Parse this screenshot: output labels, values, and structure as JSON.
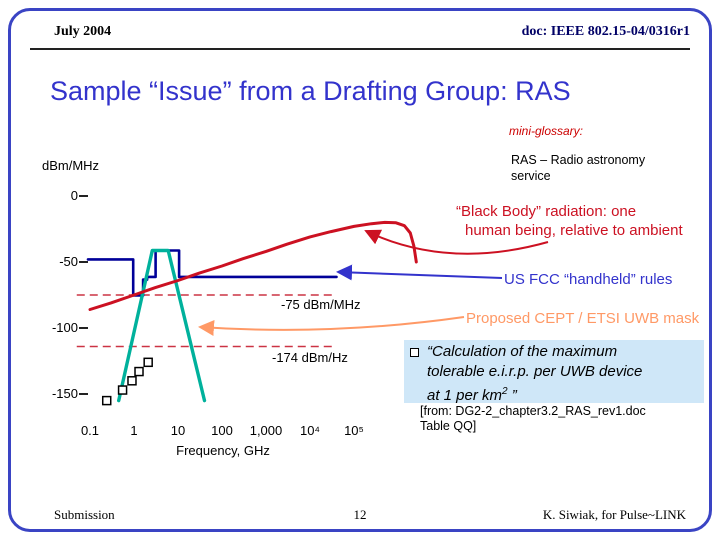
{
  "slide": {
    "header_left": "July 2004",
    "header_right": "doc: IEEE 802.15-04/0316r1",
    "title": "Sample “Issue” from a Drafting Group: RAS",
    "footer_left": "Submission",
    "footer_center": "12",
    "footer_right": "K. Siwiak, for Pulse~LINK"
  },
  "glossary": {
    "heading": "mini-glossary:",
    "line1": "RAS – Radio astronomy",
    "line2": "service"
  },
  "chart": {
    "ylabel": "dBm/MHz",
    "xlabel": "Frequency,  GHz",
    "yticks": [
      "0",
      "-50",
      "-100",
      "-150"
    ],
    "xticks": [
      "0.1",
      "1",
      "10",
      "100",
      "1,000",
      "10⁴",
      "10⁵"
    ]
  },
  "annotations": {
    "blackbody_line1": "“Black Body” radiation: one",
    "blackbody_line2": "human being, relative to ambient",
    "fcc": "US FCC “handheld” rules",
    "cept": "Proposed CEPT / ETSI UWB mask",
    "ref75": "-75 dBm/MHz",
    "ref174": "-174 dBm/Hz",
    "calc_line1": "“Calculation of the maximum",
    "calc_line2": "tolerable e.i.r.p. per UWB device",
    "calc_line3_pre": "at 1 per km",
    "calc_sup": "2",
    "calc_line3_post": " ”",
    "from_line1": "[from: DG2-2_chapter3.2_RAS_rev1.doc",
    "from_line2": "Table QQ]"
  },
  "colors": {
    "title": "#3333cc",
    "header_right": "#000066",
    "blackbody": "#cc1122",
    "fcc_text": "#3333cc",
    "cept_text": "#ff9966",
    "dashed": "#cc3344",
    "border": "#3a44c4",
    "calc_box_bg": "#cfe7f8"
  },
  "chart_data": {
    "type": "line",
    "title": "",
    "xlabel": "Frequency, GHz",
    "ylabel": "dBm/MHz",
    "x_scale": "log",
    "xlim": [
      0.1,
      100000
    ],
    "ylim": [
      -175,
      10
    ],
    "x_tick_labels": [
      "0.1",
      "1",
      "10",
      "100",
      "1,000",
      "10⁴",
      "10⁵"
    ],
    "y_ticks": [
      0,
      -50,
      -100,
      -150
    ],
    "grid": false,
    "legend": "annotated-arrows",
    "series": [
      {
        "name": "US FCC handheld rules",
        "color": "#000099",
        "stroke_width": 2.6,
        "x": [
          0.09,
          0.96,
          0.96,
          1.61,
          1.61,
          1.99,
          1.99,
          3.1,
          3.1,
          10.6,
          10.6,
          40000
        ],
        "y": [
          -48,
          -48,
          -75.3,
          -75.3,
          -63.3,
          -63.3,
          -61.3,
          -61.3,
          -41.3,
          -41.3,
          -61.3,
          -61.3
        ]
      },
      {
        "name": "Proposed CEPT / ETSI UWB mask",
        "color": "#00b19c",
        "stroke_width": 3.4,
        "x": [
          0.45,
          2.6,
          6,
          40
        ],
        "y": [
          -155,
          -41.3,
          -41.3,
          -155
        ]
      },
      {
        "name": "RAS measurement points",
        "color": "#000000",
        "marker": "square",
        "x": [
          0.24,
          0.55,
          0.9,
          1.3,
          2.1
        ],
        "y": [
          -155,
          -147,
          -140,
          -133,
          -126
        ]
      },
      {
        "name": "Black Body radiation: one human being, relative to ambient",
        "color": "#cc1122",
        "stroke_width": 3,
        "x": [
          0.1,
          0.3,
          1,
          3,
          10,
          30,
          100,
          300,
          1000,
          3000,
          10000,
          30000,
          100000,
          250000,
          500000,
          900000,
          1400000,
          1900000,
          2300000,
          2600000
        ],
        "y": [
          -86,
          -81,
          -75,
          -69.5,
          -64,
          -58.5,
          -53,
          -47.5,
          -42,
          -36.5,
          -31,
          -27,
          -23,
          -21,
          -20,
          -20.3,
          -22.5,
          -28,
          -38,
          -50
        ]
      }
    ],
    "reference_lines": [
      {
        "label": "-75 dBm/MHz",
        "y": -75,
        "x_from": 0.05,
        "x_to": 40000,
        "style": "dashed",
        "color": "#cc3344"
      },
      {
        "label": "-174 dBm/Hz",
        "y": -114,
        "x_from": 0.05,
        "x_to": 40000,
        "style": "dashed",
        "color": "#cc3344"
      }
    ]
  }
}
